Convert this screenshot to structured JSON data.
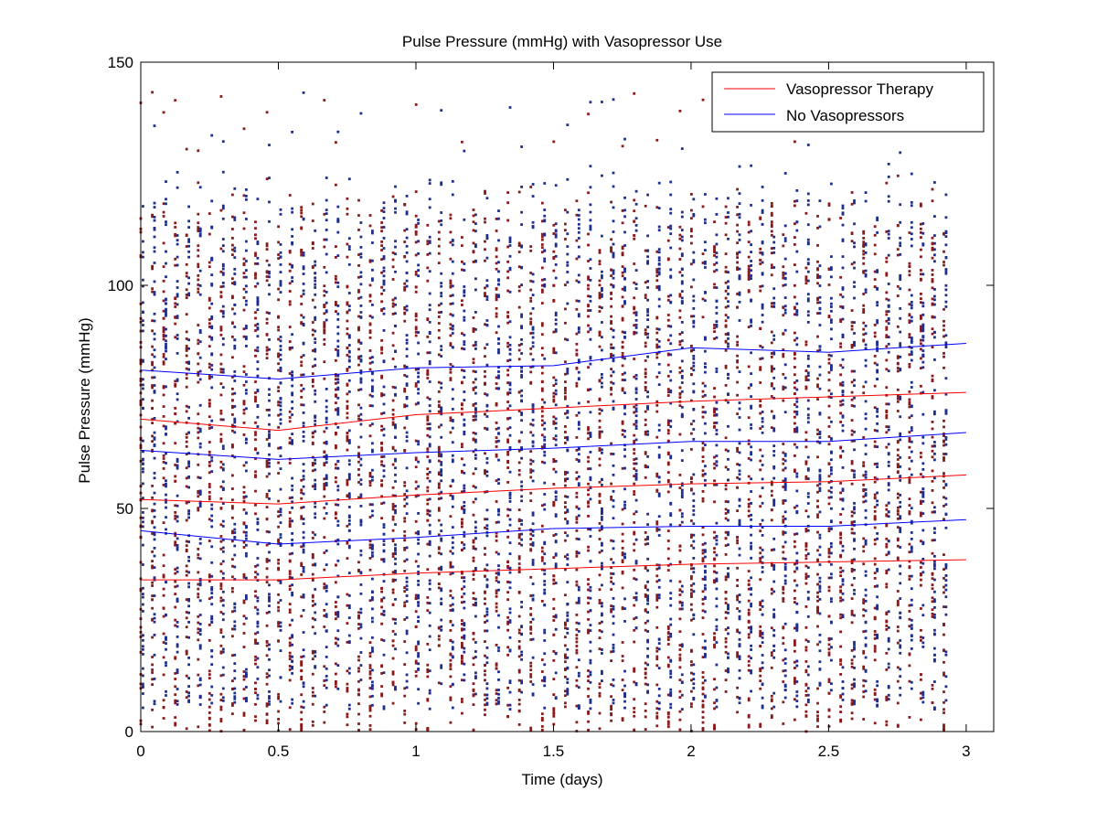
{
  "chart_data": {
    "type": "scatter",
    "title": "Pulse Pressure (mmHg) with Vasopressor Use",
    "xlabel": "Time (days)",
    "ylabel": "Pulse Pressure (mmHg)",
    "xlim": [
      0,
      3.1
    ],
    "ylim": [
      0,
      150
    ],
    "x_ticks": [
      0,
      0.5,
      1,
      1.5,
      2,
      2.5,
      3
    ],
    "x_tick_labels": [
      "0",
      "0.5",
      "1",
      "1.5",
      "2",
      "2.5",
      "3"
    ],
    "y_ticks": [
      0,
      50,
      100,
      150
    ],
    "y_tick_labels": [
      "0",
      "50",
      "100",
      "150"
    ],
    "grid": false,
    "legend_position": "top-right",
    "scatter_note": "Dense hourly point samples for both groups, roughly 0–130 mmHg at each of ~72 time columns",
    "scatter_series": [
      {
        "name": "Vasopressor Therapy",
        "color": "#8b1a1a",
        "x_step": 0.0417,
        "x_max": 2.96,
        "y_range": [
          0,
          125
        ]
      },
      {
        "name": "No Vasopressors",
        "color": "#1f2f8f",
        "x_step": 0.0417,
        "x_max": 2.96,
        "y_range": [
          5,
          128
        ]
      }
    ],
    "series": [
      {
        "name": "Vasopressor Therapy",
        "color": "#ff0000",
        "role": "upper quartile",
        "x": [
          0,
          0.5,
          1,
          1.5,
          2,
          2.5,
          3
        ],
        "values": [
          70,
          67.5,
          71,
          72.5,
          74,
          75,
          76
        ]
      },
      {
        "name": "Vasopressor Therapy",
        "color": "#ff0000",
        "role": "median",
        "x": [
          0,
          0.5,
          1,
          1.5,
          2,
          2.5,
          3
        ],
        "values": [
          52,
          51,
          53,
          54.5,
          55.5,
          56,
          57.5
        ]
      },
      {
        "name": "Vasopressor Therapy",
        "color": "#ff0000",
        "role": "lower quartile",
        "x": [
          0,
          0.5,
          1,
          1.5,
          2,
          2.5,
          3
        ],
        "values": [
          34,
          34,
          35.5,
          36.5,
          37.5,
          38,
          38.5
        ]
      },
      {
        "name": "No Vasopressors",
        "color": "#0000ff",
        "role": "upper quartile",
        "x": [
          0,
          0.5,
          1,
          1.5,
          2,
          2.5,
          3
        ],
        "values": [
          81,
          79,
          81.5,
          82,
          86,
          85,
          87
        ]
      },
      {
        "name": "No Vasopressors",
        "color": "#0000ff",
        "role": "median",
        "x": [
          0,
          0.5,
          1,
          1.5,
          2,
          2.5,
          3
        ],
        "values": [
          63,
          61,
          62.5,
          63.5,
          65,
          65,
          67
        ]
      },
      {
        "name": "No Vasopressors",
        "color": "#0000ff",
        "role": "lower quartile",
        "x": [
          0,
          0.5,
          1,
          1.5,
          2,
          2.5,
          3
        ],
        "values": [
          45,
          42,
          43.5,
          45.5,
          46,
          46,
          47.5
        ]
      }
    ],
    "legend": [
      {
        "label": "Vasopressor Therapy",
        "color": "#ff0000"
      },
      {
        "label": "No Vasopressors",
        "color": "#0000ff"
      }
    ]
  }
}
